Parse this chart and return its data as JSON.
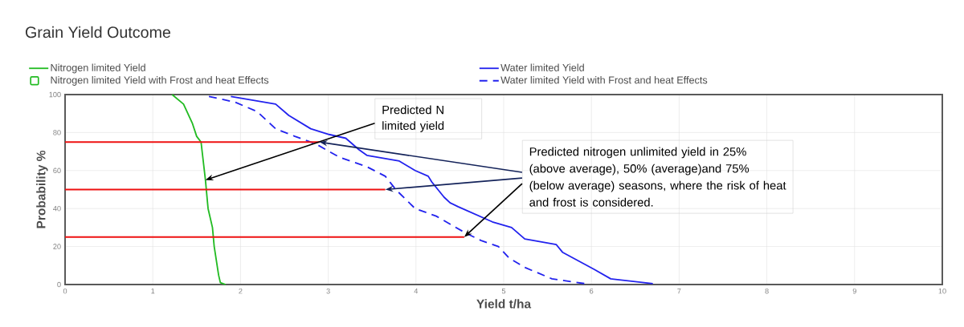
{
  "chart_data": {
    "type": "line",
    "title": "Grain Yield Outcome",
    "xlabel": "Yield t/ha",
    "ylabel": "Probability %",
    "xlim": [
      0,
      10
    ],
    "ylim": [
      0,
      100
    ],
    "xticks": [
      0,
      1,
      2,
      3,
      4,
      5,
      6,
      7,
      8,
      9,
      10
    ],
    "yticks": [
      0,
      20,
      40,
      60,
      80,
      100
    ],
    "grid": true,
    "legend": "top left",
    "line_style": "solid",
    "marker": "none",
    "series": [
      {
        "name": "Nitrogen limited Yield",
        "color": "#22bb22",
        "x": [
          1.22,
          1.35,
          1.45,
          1.5,
          1.55,
          1.6,
          1.63,
          1.68,
          1.7,
          1.75,
          1.77,
          1.83
        ],
        "values": [
          100,
          95,
          85,
          78,
          75,
          55,
          40,
          30,
          20,
          5,
          1,
          0
        ]
      },
      {
        "name": "Water limited Yield",
        "color": "#2222ee",
        "x": [
          1.89,
          2.4,
          2.55,
          2.8,
          3.01,
          3.2,
          3.35,
          3.44,
          3.81,
          3.99,
          4.14,
          4.18,
          4.32,
          4.39,
          4.48,
          4.87,
          5.09,
          5.24,
          5.6,
          5.67,
          6.03,
          6.22,
          6.7
        ],
        "values": [
          99,
          95,
          89,
          82,
          79,
          77,
          71,
          68,
          65,
          60,
          57,
          54,
          46,
          43,
          41,
          33,
          30,
          24,
          21,
          17,
          8,
          3,
          0.5
        ]
      },
      {
        "name": "Nitrogen limited Yield with Frost and heat Effects",
        "color": "#22bb22"
      },
      {
        "name": "Water limited Yield with Frost and heat Effects",
        "color": "#2222ee",
        "line_style": "dashed",
        "x": [
          1.64,
          1.94,
          2.19,
          2.4,
          2.62,
          2.86,
          3.01,
          3.13,
          3.44,
          3.65,
          3.77,
          3.99,
          4.23,
          4.57,
          4.75,
          4.94,
          5.06,
          5.24,
          5.55,
          5.92
        ],
        "values": [
          99,
          96,
          91,
          82,
          78,
          74,
          70,
          67,
          62,
          57,
          50,
          40,
          36,
          27,
          23,
          20,
          14,
          9,
          3,
          0.5
        ]
      },
      {
        "color": "#ee1111",
        "x": [
          0,
          2.9
        ],
        "values": [
          75,
          75
        ]
      },
      {
        "color": "#ee1111",
        "x": [
          0,
          3.65
        ],
        "values": [
          50,
          50
        ]
      },
      {
        "color": "#ee1111",
        "x": [
          0,
          4.55
        ],
        "values": [
          25,
          25
        ]
      }
    ],
    "annotations": [
      {
        "text": "Predicted N limited yield",
        "x": 1.6,
        "y": 55
      },
      {
        "text": "Predicted nitrogen unlimited yield in 25% (above average), 50% (average)and 75% (below average) seasons, where the risk of heat and frost is considered.",
        "x": 3.65,
        "y": 50
      }
    ]
  }
}
